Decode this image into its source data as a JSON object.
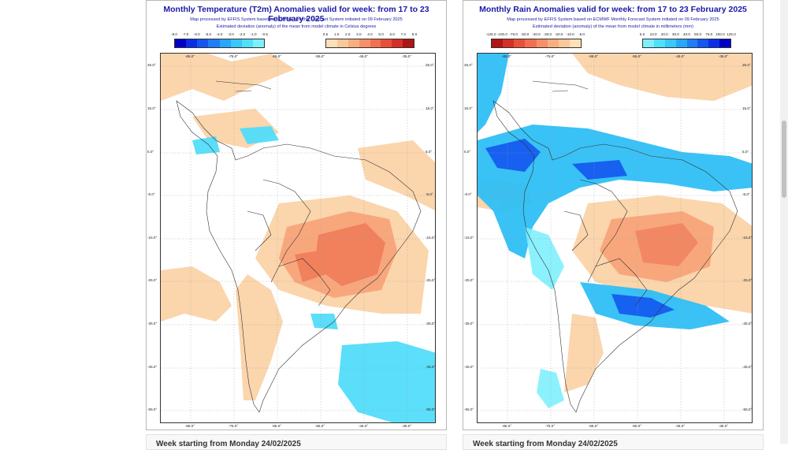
{
  "temperature_panel": {
    "title": "Monthly Temperature (T2m) Anomalies valid for week: from 17 to 23 February 2025",
    "subtitle1": "Map processed by EFFIS System based on ECMWF Monthly Forecast System initiated on 09 February 2025",
    "subtitle2": "Estimated deviation (anomaly) of the mean from model climate in Celsius degrees",
    "legend_negative": {
      "ticks": [
        "-8.0",
        "-7.0",
        "-6.0",
        "-5.0",
        "-4.0",
        "-3.0",
        "-2.0",
        "-1.0",
        "-0.5"
      ],
      "colors": [
        "#0000c8",
        "#0a2ee6",
        "#1456f0",
        "#1e7ef5",
        "#28a6f8",
        "#38c8fa",
        "#50e0fc",
        "#7ef0fd"
      ]
    },
    "legend_positive": {
      "ticks": [
        "0.5",
        "1.0",
        "2.0",
        "3.0",
        "4.0",
        "5.0",
        "6.0",
        "7.0",
        "8.0"
      ],
      "colors": [
        "#fde0b8",
        "#fbc89a",
        "#f9ae80",
        "#f79068",
        "#f27050",
        "#e8503a",
        "#d43028",
        "#b01414"
      ]
    },
    "lat_labels": [
      "25.0°",
      "15.0°",
      "5.0°",
      "-5.0°",
      "-15.0°",
      "-25.0°",
      "-35.0°",
      "-45.0°",
      "-55.0°"
    ],
    "lon_top": [
      "-85.0°",
      "-75.0°",
      "-65.0°",
      "-55.0°",
      "-45.0°",
      "-35.0°"
    ],
    "lon_bottom": [
      "-85.0°",
      "-75.0°",
      "-65.0°",
      "-55.0°",
      "-45.0°",
      "-35.0°"
    ]
  },
  "rain_panel": {
    "title": "Monthly Rain Anomalies valid for week: from 17 to 23 February 2025",
    "subtitle1": "Map processed by EFFIS System based on ECMWF Monthly Forecast System initiated on 09 February 2025",
    "subtitle2": "Estimated deviation (anomaly) of the mean from model climate in millimeters (mm)",
    "legend_negative": {
      "ticks": [
        "-125.0",
        "-100.0",
        "-75.0",
        "-50.0",
        "-40.0",
        "-30.0",
        "-20.0",
        "-10.0",
        "-5.0"
      ],
      "colors": [
        "#b01414",
        "#d43028",
        "#e8503a",
        "#f27050",
        "#f79068",
        "#f9ae80",
        "#fbc89a",
        "#fde0b8"
      ]
    },
    "legend_positive": {
      "ticks": [
        "5.0",
        "10.0",
        "20.0",
        "30.0",
        "40.0",
        "50.0",
        "75.0",
        "100.0",
        "125.0"
      ],
      "colors": [
        "#7ef0fd",
        "#50e0fc",
        "#38c8fa",
        "#28a6f8",
        "#1e7ef5",
        "#1456f0",
        "#0a2ee6",
        "#0000c8"
      ]
    },
    "lat_labels": [
      "25.0°",
      "15.0°",
      "5.0°",
      "-5.0°",
      "-15.0°",
      "-25.0°",
      "-35.0°",
      "-45.0°",
      "-55.0°"
    ],
    "lon_top": [
      "-85.0°",
      "-75.0°",
      "-65.0°",
      "-55.0°",
      "-45.0°",
      "-35.0°"
    ],
    "lon_bottom": [
      "-85.0°",
      "-75.0°",
      "-65.0°",
      "-55.0°",
      "-45.0°",
      "-35.0°"
    ]
  },
  "bottom_cards": [
    "Week starting from Monday 24/02/2025",
    "Week starting from Monday 24/02/2025"
  ]
}
